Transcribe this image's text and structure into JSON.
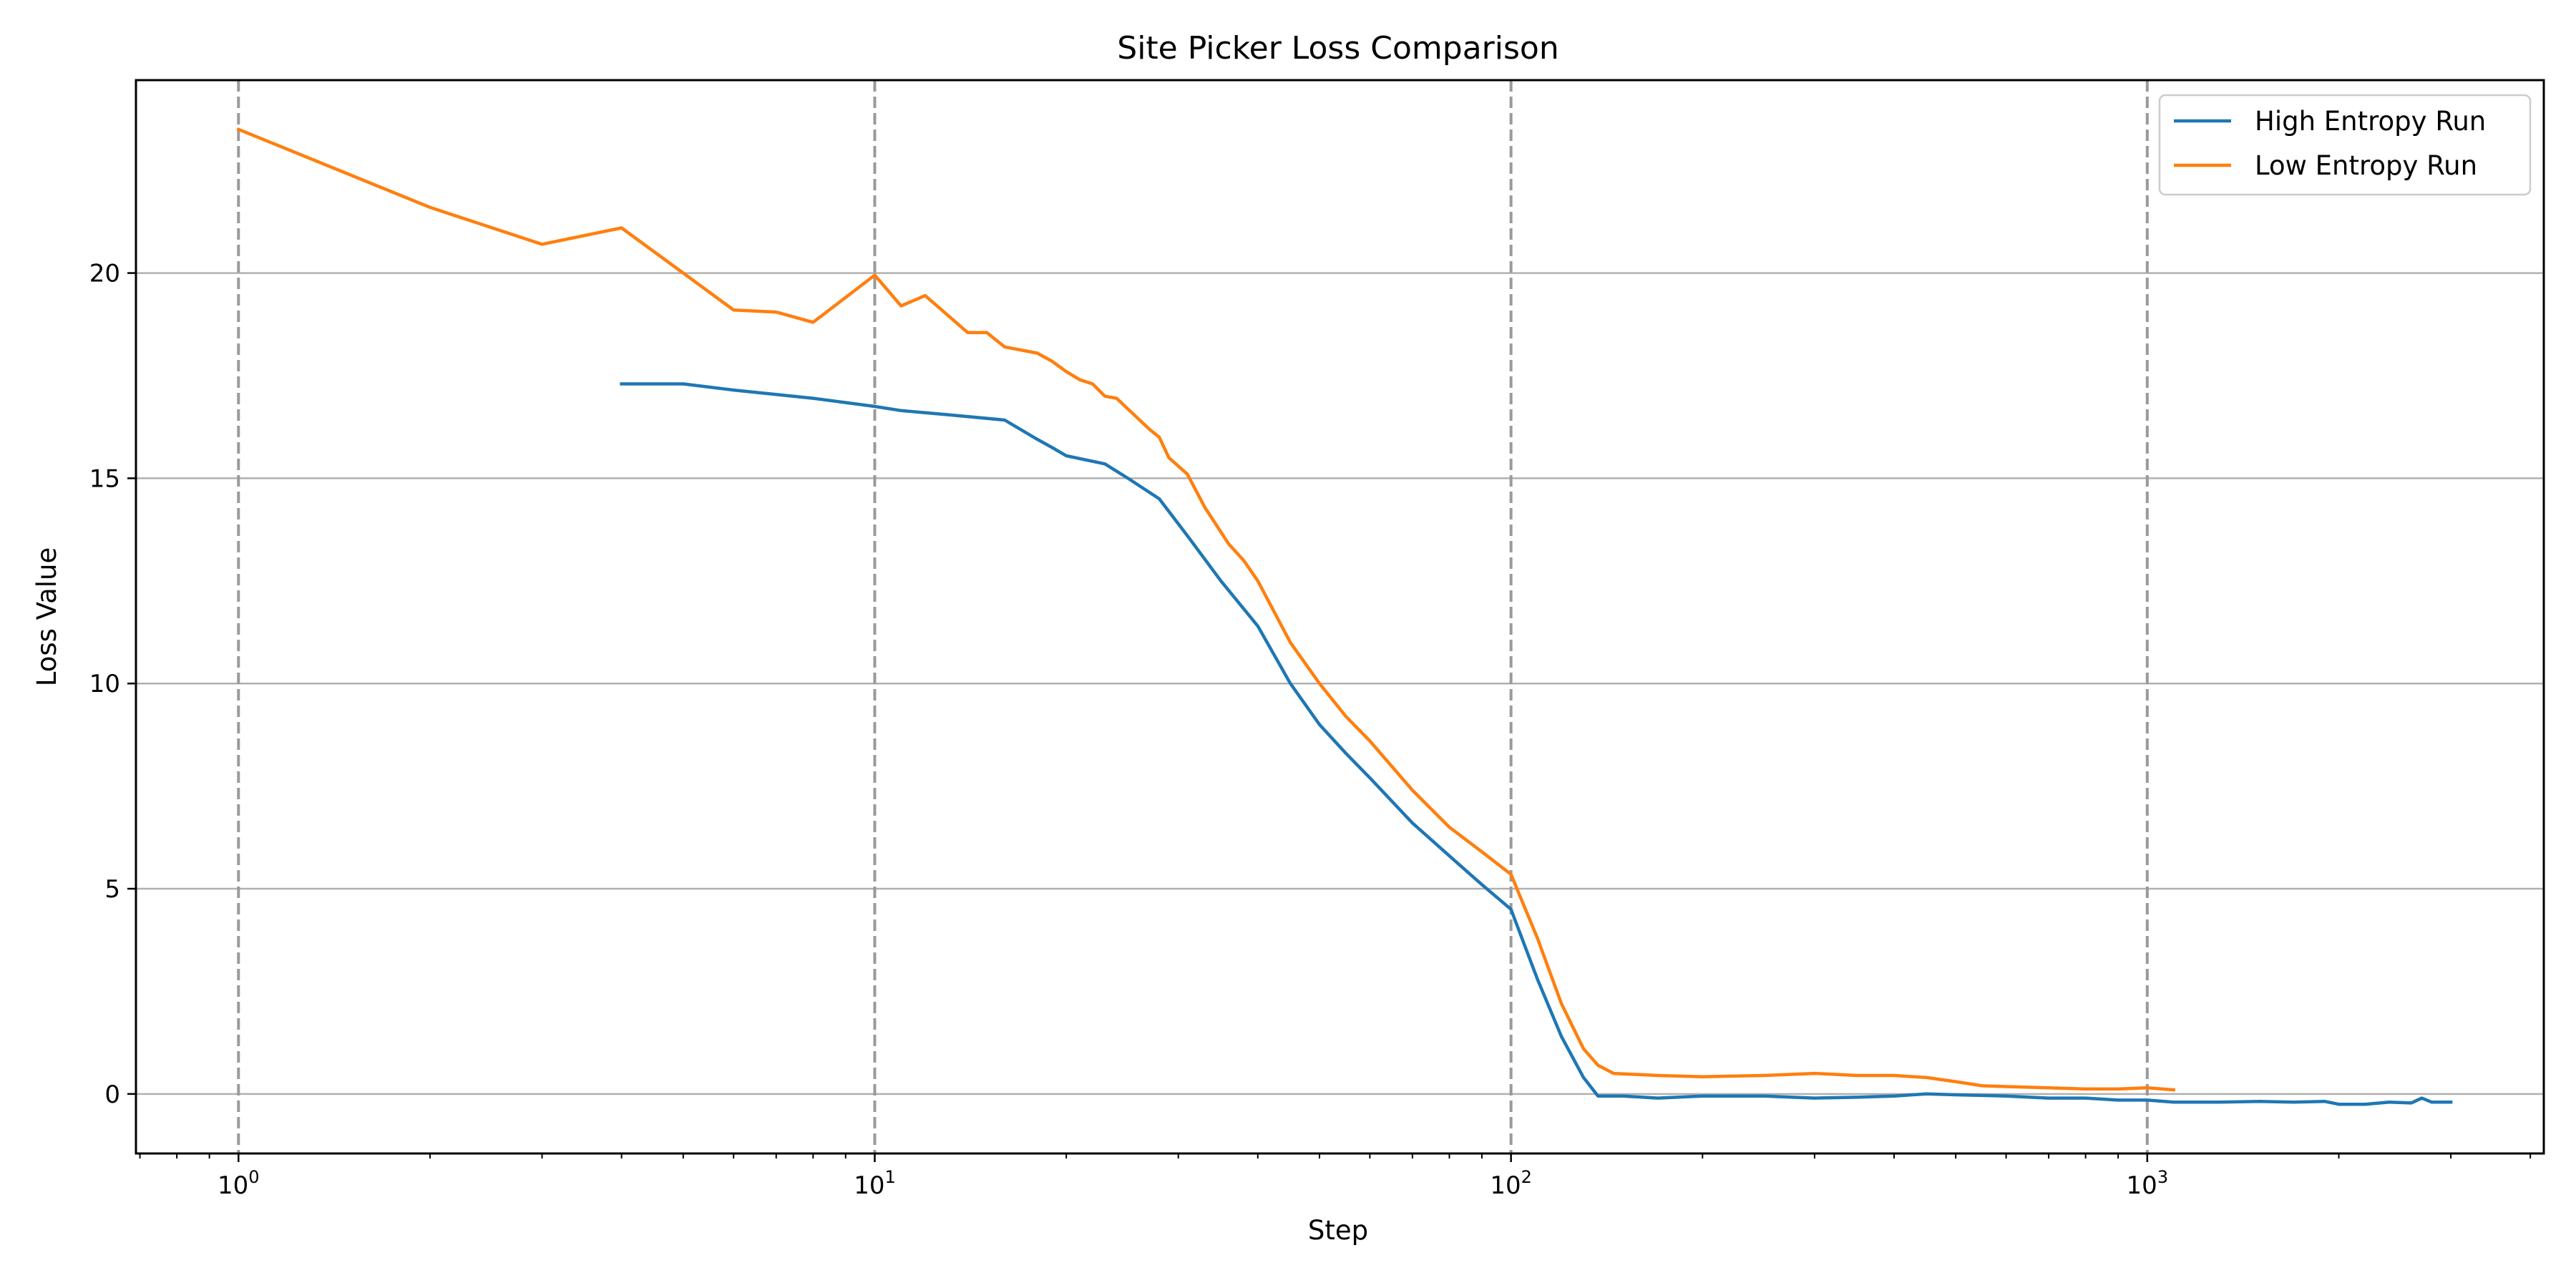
{
  "chart_data": {
    "type": "line",
    "title": "Site Picker Loss Comparison",
    "xlabel": "Step",
    "ylabel": "Loss Value",
    "xscale": "log",
    "xlim": [
      0.69,
      4200
    ],
    "ylim": [
      -1.45,
      24.7
    ],
    "x_ticks": [
      {
        "value": 1,
        "base": "10",
        "exp": "0"
      },
      {
        "value": 10,
        "base": "10",
        "exp": "1"
      },
      {
        "value": 100,
        "base": "10",
        "exp": "2"
      },
      {
        "value": 1000,
        "base": "10",
        "exp": "3"
      }
    ],
    "y_ticks": [
      0,
      5,
      10,
      15,
      20
    ],
    "grid": "horizontal solid at y ticks, vertical dashed at decades",
    "legend_position": "top-right",
    "series": [
      {
        "name": "High Entropy Run",
        "color": "#1f77b4",
        "points": [
          [
            4,
            17.3
          ],
          [
            5,
            17.3
          ],
          [
            6,
            17.15
          ],
          [
            8,
            16.95
          ],
          [
            10,
            16.75
          ],
          [
            11,
            16.65
          ],
          [
            13,
            16.55
          ],
          [
            16,
            16.42
          ],
          [
            18,
            15.95
          ],
          [
            19,
            15.75
          ],
          [
            20,
            15.55
          ],
          [
            23,
            15.35
          ],
          [
            25,
            15.0
          ],
          [
            28,
            14.5
          ],
          [
            31,
            13.6
          ],
          [
            35,
            12.5
          ],
          [
            40,
            11.4
          ],
          [
            45,
            10.0
          ],
          [
            50,
            9.0
          ],
          [
            55,
            8.3
          ],
          [
            60,
            7.7
          ],
          [
            70,
            6.6
          ],
          [
            80,
            5.8
          ],
          [
            90,
            5.1
          ],
          [
            100,
            4.5
          ],
          [
            110,
            2.8
          ],
          [
            120,
            1.4
          ],
          [
            130,
            0.4
          ],
          [
            137,
            -0.05
          ],
          [
            150,
            -0.05
          ],
          [
            170,
            -0.1
          ],
          [
            200,
            -0.05
          ],
          [
            250,
            -0.05
          ],
          [
            300,
            -0.1
          ],
          [
            350,
            -0.08
          ],
          [
            400,
            -0.05
          ],
          [
            450,
            0.0
          ],
          [
            500,
            -0.02
          ],
          [
            600,
            -0.05
          ],
          [
            700,
            -0.1
          ],
          [
            800,
            -0.1
          ],
          [
            900,
            -0.15
          ],
          [
            1000,
            -0.15
          ],
          [
            1100,
            -0.2
          ],
          [
            1300,
            -0.2
          ],
          [
            1500,
            -0.18
          ],
          [
            1700,
            -0.2
          ],
          [
            1900,
            -0.18
          ],
          [
            2000,
            -0.25
          ],
          [
            2200,
            -0.25
          ],
          [
            2400,
            -0.2
          ],
          [
            2600,
            -0.22
          ],
          [
            2700,
            -0.1
          ],
          [
            2800,
            -0.2
          ],
          [
            3000,
            -0.2
          ]
        ]
      },
      {
        "name": "Low Entropy Run",
        "color": "#ff7f0e",
        "points": [
          [
            1,
            23.5
          ],
          [
            2,
            21.6
          ],
          [
            3,
            20.7
          ],
          [
            4,
            21.1
          ],
          [
            5,
            20.0
          ],
          [
            6,
            19.1
          ],
          [
            7,
            19.05
          ],
          [
            8,
            18.8
          ],
          [
            10,
            19.95
          ],
          [
            11,
            19.2
          ],
          [
            12,
            19.45
          ],
          [
            14,
            18.55
          ],
          [
            15,
            18.55
          ],
          [
            16,
            18.2
          ],
          [
            18,
            18.05
          ],
          [
            19,
            17.85
          ],
          [
            20,
            17.6
          ],
          [
            21,
            17.4
          ],
          [
            22,
            17.3
          ],
          [
            23,
            17.0
          ],
          [
            24,
            16.95
          ],
          [
            27,
            16.2
          ],
          [
            28,
            16.0
          ],
          [
            29,
            15.5
          ],
          [
            31,
            15.1
          ],
          [
            33,
            14.3
          ],
          [
            36,
            13.4
          ],
          [
            38,
            13.0
          ],
          [
            40,
            12.5
          ],
          [
            45,
            11.0
          ],
          [
            50,
            10.0
          ],
          [
            55,
            9.2
          ],
          [
            60,
            8.6
          ],
          [
            70,
            7.4
          ],
          [
            80,
            6.5
          ],
          [
            90,
            5.9
          ],
          [
            100,
            5.35
          ],
          [
            110,
            3.8
          ],
          [
            120,
            2.2
          ],
          [
            130,
            1.1
          ],
          [
            137,
            0.7
          ],
          [
            145,
            0.5
          ],
          [
            170,
            0.45
          ],
          [
            200,
            0.42
          ],
          [
            250,
            0.45
          ],
          [
            300,
            0.5
          ],
          [
            350,
            0.45
          ],
          [
            400,
            0.45
          ],
          [
            450,
            0.4
          ],
          [
            500,
            0.3
          ],
          [
            550,
            0.2
          ],
          [
            600,
            0.18
          ],
          [
            700,
            0.15
          ],
          [
            800,
            0.12
          ],
          [
            900,
            0.12
          ],
          [
            1000,
            0.15
          ],
          [
            1100,
            0.1
          ]
        ]
      }
    ]
  }
}
